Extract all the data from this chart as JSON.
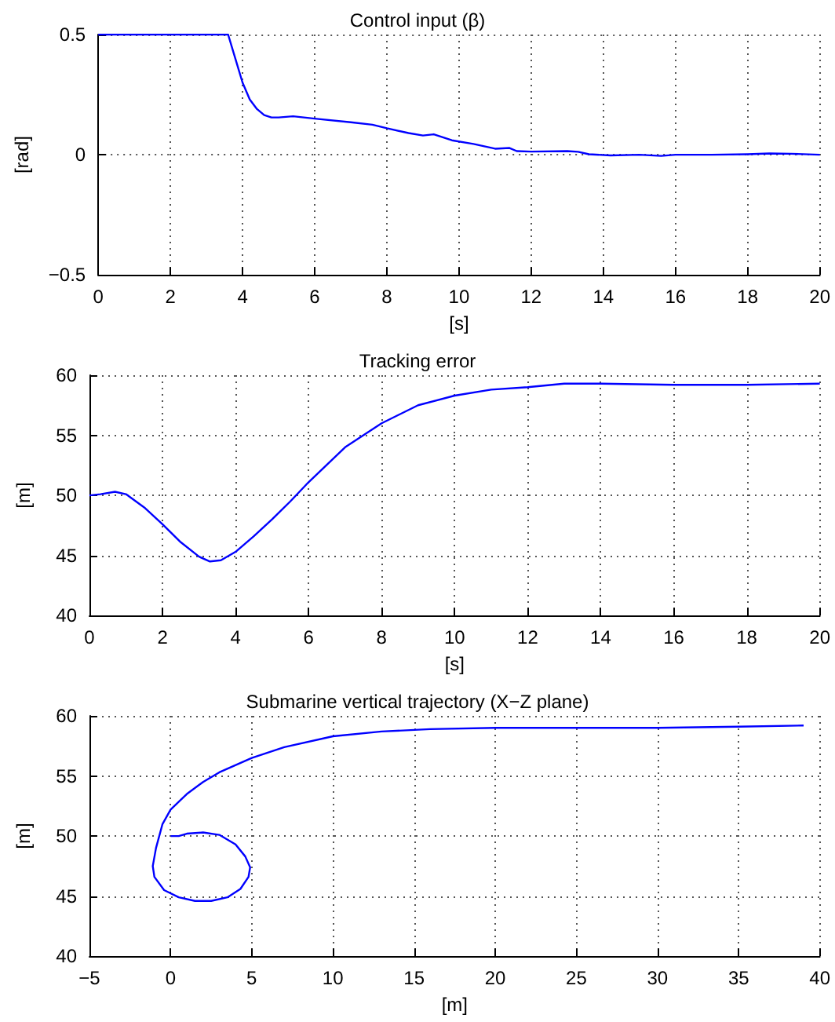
{
  "chart_data": [
    {
      "type": "line",
      "title": "Control input (β)",
      "xlabel": "[s]",
      "ylabel": "[rad]",
      "color": "#0000ff",
      "grid": true,
      "xlim": [
        0,
        20
      ],
      "xticks": [
        0,
        2,
        4,
        6,
        8,
        10,
        12,
        14,
        16,
        18,
        20
      ],
      "ylim": [
        -0.5,
        0.5
      ],
      "yticks": [
        {
          "value": -0.5,
          "label": "−0.5"
        },
        0,
        0.5
      ],
      "x": [
        0,
        3.6,
        3.8,
        4.0,
        4.2,
        4.4,
        4.6,
        4.8,
        5.0,
        5.4,
        6,
        7,
        7.6,
        8,
        8.6,
        9.0,
        9.3,
        9.5,
        9.8,
        10.4,
        11,
        11.4,
        11.6,
        12,
        13,
        13.3,
        13.6,
        14.2,
        15,
        15.6,
        16,
        17,
        18,
        18.6,
        19.2,
        20
      ],
      "values": [
        0.5,
        0.5,
        0.4,
        0.3,
        0.23,
        0.19,
        0.165,
        0.155,
        0.155,
        0.16,
        0.15,
        0.135,
        0.125,
        0.11,
        0.09,
        0.08,
        0.085,
        0.075,
        0.06,
        0.045,
        0.025,
        0.028,
        0.015,
        0.013,
        0.015,
        0.012,
        0.002,
        -0.003,
        0.0,
        -0.005,
        0.0,
        0.0,
        0.002,
        0.005,
        0.004,
        0.0
      ]
    },
    {
      "type": "line",
      "title": "Tracking error",
      "xlabel": "[s]",
      "ylabel": "[m]",
      "color": "#0000ff",
      "grid": true,
      "xlim": [
        0,
        20
      ],
      "xticks": [
        0,
        2,
        4,
        6,
        8,
        10,
        12,
        14,
        16,
        18,
        20
      ],
      "ylim": [
        40,
        60
      ],
      "yticks": [
        40,
        45,
        50,
        55,
        60
      ],
      "x": [
        0,
        0.3,
        0.7,
        1.0,
        1.5,
        2,
        2.5,
        3,
        3.3,
        3.6,
        4,
        4.5,
        5,
        5.5,
        6,
        7,
        8,
        9,
        10,
        11,
        12,
        13,
        14,
        16,
        18,
        20
      ],
      "values": [
        50,
        50.1,
        50.3,
        50.1,
        49,
        47.6,
        46.1,
        44.9,
        44.5,
        44.6,
        45.3,
        46.6,
        48,
        49.5,
        51.1,
        54,
        56,
        57.5,
        58.3,
        58.8,
        59.0,
        59.3,
        59.3,
        59.2,
        59.2,
        59.3
      ]
    },
    {
      "type": "line",
      "title": "Submarine vertical trajectory (X−Z plane)",
      "xlabel": "[m]",
      "ylabel": "[m]",
      "grid": true,
      "xlim": [
        -5,
        40
      ],
      "xticks": [
        {
          "value": -5,
          "label": "−5"
        },
        0,
        5,
        10,
        15,
        20,
        25,
        30,
        35,
        40
      ],
      "ylim": [
        40,
        60
      ],
      "yticks": [
        40,
        45,
        50,
        55,
        60
      ],
      "series": [
        {
          "color": "#0000ff",
          "x": [
            0,
            0.5,
            1,
            2,
            3,
            4,
            4.6,
            4.9,
            4.8,
            4.3,
            3.5,
            2.5,
            1.5,
            0.5,
            -0.4,
            -1,
            -1.1,
            -0.9,
            -0.5,
            0,
            1,
            2,
            3,
            5,
            7,
            10,
            13,
            16,
            20,
            25,
            30,
            35,
            39
          ],
          "values": [
            50,
            50,
            50.2,
            50.3,
            50.1,
            49.3,
            48.3,
            47.4,
            46.6,
            45.6,
            44.9,
            44.6,
            44.6,
            44.9,
            45.5,
            46.6,
            47.5,
            49,
            51,
            52.2,
            53.5,
            54.5,
            55.3,
            56.5,
            57.4,
            58.3,
            58.7,
            58.9,
            59.0,
            59.0,
            59.0,
            59.1,
            59.2
          ]
        }
      ]
    }
  ]
}
